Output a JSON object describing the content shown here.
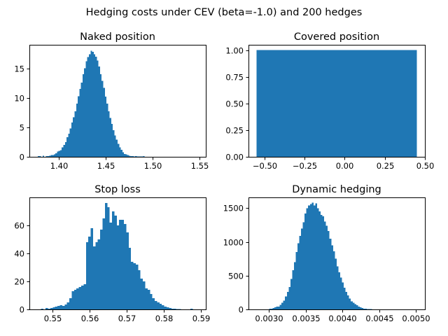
{
  "figure": {
    "suptitle": "Hedging costs under CEV (beta=-1.0) and 200 hedges"
  },
  "colors": {
    "bar": "#1f77b4"
  },
  "chart_data": [
    {
      "type": "bar",
      "title": "Naked position",
      "xlabel": "",
      "ylabel": "",
      "xlim": [
        1.369,
        1.557
      ],
      "ylim": [
        0,
        19
      ],
      "xticks": [
        1.4,
        1.45,
        1.5,
        1.55
      ],
      "xtick_labels": [
        "1.40",
        "1.45",
        "1.50",
        "1.55"
      ],
      "yticks": [
        0,
        5,
        10,
        15
      ],
      "ytick_labels": [
        "0",
        "5",
        "10",
        "15"
      ],
      "bins": {
        "start": 1.378,
        "width": 0.0017
      },
      "values": [
        0.1,
        0.1,
        0,
        0.2,
        0,
        0.1,
        0.1,
        0.2,
        0.3,
        0.3,
        0.4,
        0.6,
        0.9,
        1.0,
        1.1,
        1.6,
        2.0,
        2.5,
        3.3,
        3.9,
        4.8,
        5.8,
        6.7,
        7.7,
        9.0,
        10.3,
        11.5,
        12.6,
        14.0,
        15.0,
        16.2,
        16.9,
        17.4,
        18.0,
        17.8,
        17.4,
        17.0,
        16.3,
        15.3,
        14.0,
        12.9,
        11.7,
        10.2,
        9.0,
        7.7,
        6.6,
        5.6,
        4.5,
        3.6,
        2.9,
        2.2,
        1.6,
        1.2,
        0.8,
        0.5,
        0.4,
        0.3,
        0.2,
        0.1,
        0.1,
        0.05,
        0.1,
        0.05,
        0.05,
        0.05,
        0.05,
        0.1
      ]
    },
    {
      "type": "bar",
      "title": "Covered position",
      "xlabel": "",
      "ylabel": "",
      "xlim": [
        -0.6,
        0.5
      ],
      "ylim": [
        0,
        1.05
      ],
      "xticks": [
        -0.5,
        -0.25,
        0.0,
        0.25,
        0.5
      ],
      "xtick_labels": [
        "−0.50",
        "−0.25",
        "0.00",
        "0.25",
        "0.50"
      ],
      "yticks": [
        0.0,
        0.25,
        0.5,
        0.75,
        1.0
      ],
      "ytick_labels": [
        "0.00",
        "0.25",
        "0.50",
        "0.75",
        "1.00"
      ],
      "bins": {
        "start": -0.55,
        "width": 1.0
      },
      "values": [
        1.0
      ]
    },
    {
      "type": "bar",
      "title": "Stop loss",
      "xlabel": "",
      "ylabel": "",
      "xlim": [
        0.5437,
        0.5913
      ],
      "ylim": [
        0,
        80
      ],
      "xticks": [
        0.55,
        0.56,
        0.57,
        0.58,
        0.59
      ],
      "xtick_labels": [
        "0.55",
        "0.56",
        "0.57",
        "0.58",
        "0.59"
      ],
      "yticks": [
        0,
        20,
        40,
        60
      ],
      "ytick_labels": [
        "0",
        "20",
        "40",
        "60"
      ],
      "bins": {
        "start": 0.5468,
        "width": 0.00064
      },
      "values": [
        0.5,
        0,
        1,
        0.5,
        1,
        1.5,
        2,
        2.5,
        3,
        2.5,
        3.5,
        5,
        8,
        13,
        14,
        15,
        16,
        17,
        18,
        48,
        52,
        58,
        45,
        48,
        50,
        57,
        65,
        76,
        73,
        62,
        70,
        67,
        60,
        64,
        64,
        61,
        55,
        44,
        34,
        33,
        32,
        28,
        22,
        20,
        15,
        14,
        11,
        8,
        6,
        5,
        4,
        3,
        2,
        1.5,
        1,
        0.5,
        0.5,
        0.3,
        0.2,
        0.1,
        0.1,
        0.1,
        0.1,
        0.5
      ]
    },
    {
      "type": "bar",
      "title": "Dynamic hedging",
      "xlabel": "",
      "ylabel": "",
      "xlim": [
        0.00272,
        0.00512
      ],
      "ylim": [
        0,
        1660
      ],
      "xticks": [
        0.003,
        0.0035,
        0.004,
        0.0045,
        0.005
      ],
      "xtick_labels": [
        "0.0030",
        "0.0035",
        "0.0040",
        "0.0045",
        "0.0050"
      ],
      "yticks": [
        0,
        500,
        1000,
        1500
      ],
      "ytick_labels": [
        "0",
        "500",
        "1000",
        "1500"
      ],
      "bins": {
        "start": 0.00283,
        "width": 2.42e-05
      },
      "values": [
        0,
        0,
        0,
        0,
        0,
        0,
        0,
        10,
        10,
        20,
        30,
        40,
        40,
        70,
        100,
        130,
        190,
        260,
        330,
        450,
        580,
        700,
        850,
        980,
        1090,
        1200,
        1290,
        1420,
        1500,
        1540,
        1560,
        1580,
        1540,
        1570,
        1500,
        1450,
        1400,
        1380,
        1300,
        1240,
        1160,
        1050,
        950,
        860,
        750,
        640,
        550,
        470,
        400,
        320,
        260,
        210,
        160,
        120,
        100,
        80,
        60,
        40,
        30,
        20,
        10,
        10,
        5,
        5,
        3,
        2,
        2,
        1,
        1,
        1,
        1,
        0.5,
        0.5,
        1,
        1
      ]
    }
  ]
}
